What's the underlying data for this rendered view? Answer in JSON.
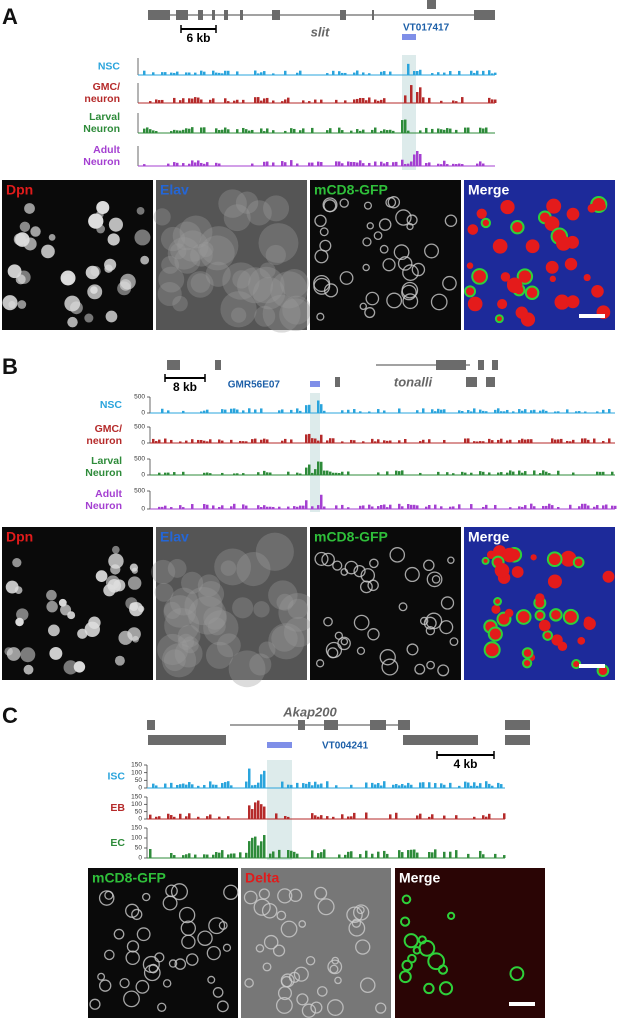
{
  "panels": [
    {
      "letter": "A",
      "gene": "slit",
      "scale": "6 kb",
      "enhancer": "VT017417",
      "tracks": [
        {
          "label": [
            "NSC"
          ],
          "color": "#2aa4dc"
        },
        {
          "label": [
            "GMC/",
            "neuron"
          ],
          "color": "#b52a2a"
        },
        {
          "label": [
            "Larval",
            "Neuron"
          ],
          "color": "#2e8b3a"
        },
        {
          "label": [
            "Adult",
            "Neuron"
          ],
          "color": "#a43fd1"
        }
      ],
      "images": [
        {
          "label": "Dpn",
          "color": "#e01b1b"
        },
        {
          "label": "Elav",
          "color": "#2466d6"
        },
        {
          "label": "mCD8-GFP",
          "color": "#2fbf3a"
        },
        {
          "label": "Merge",
          "color": "#ffffff"
        }
      ]
    },
    {
      "letter": "B",
      "gene": "tonalli",
      "scale": "8 kb",
      "enhancer": "GMR56E07",
      "tracks": [
        {
          "label": [
            "NSC"
          ],
          "color": "#2aa4dc",
          "yticks": [
            0,
            500
          ]
        },
        {
          "label": [
            "GMC/",
            "neuron"
          ],
          "color": "#b52a2a",
          "yticks": [
            0,
            500
          ]
        },
        {
          "label": [
            "Larval",
            "Neuron"
          ],
          "color": "#2e8b3a",
          "yticks": [
            0,
            500
          ]
        },
        {
          "label": [
            "Adult",
            "Neuron"
          ],
          "color": "#a43fd1",
          "yticks": [
            0,
            500
          ]
        }
      ],
      "images": [
        {
          "label": "Dpn",
          "color": "#e01b1b"
        },
        {
          "label": "Elav",
          "color": "#2466d6"
        },
        {
          "label": "mCD8-GFP",
          "color": "#2fbf3a"
        },
        {
          "label": "Merge",
          "color": "#ffffff"
        }
      ]
    },
    {
      "letter": "C",
      "gene": "Akap200",
      "scale": "4 kb",
      "enhancer": "VT004241",
      "tracks": [
        {
          "label": [
            "ISC"
          ],
          "color": "#2aa4dc",
          "yticks": [
            0,
            50,
            100,
            150
          ]
        },
        {
          "label": [
            "EB"
          ],
          "color": "#b52a2a",
          "yticks": [
            0,
            50,
            100,
            150
          ]
        },
        {
          "label": [
            "EC"
          ],
          "color": "#2e8b3a",
          "yticks": [
            0,
            50,
            100,
            150
          ]
        }
      ],
      "images": [
        {
          "label": "mCD8-GFP",
          "color": "#2fbf3a"
        },
        {
          "label": "Delta",
          "color": "#e01b1b"
        },
        {
          "label": "Merge",
          "color": "#ffffff"
        }
      ]
    }
  ]
}
